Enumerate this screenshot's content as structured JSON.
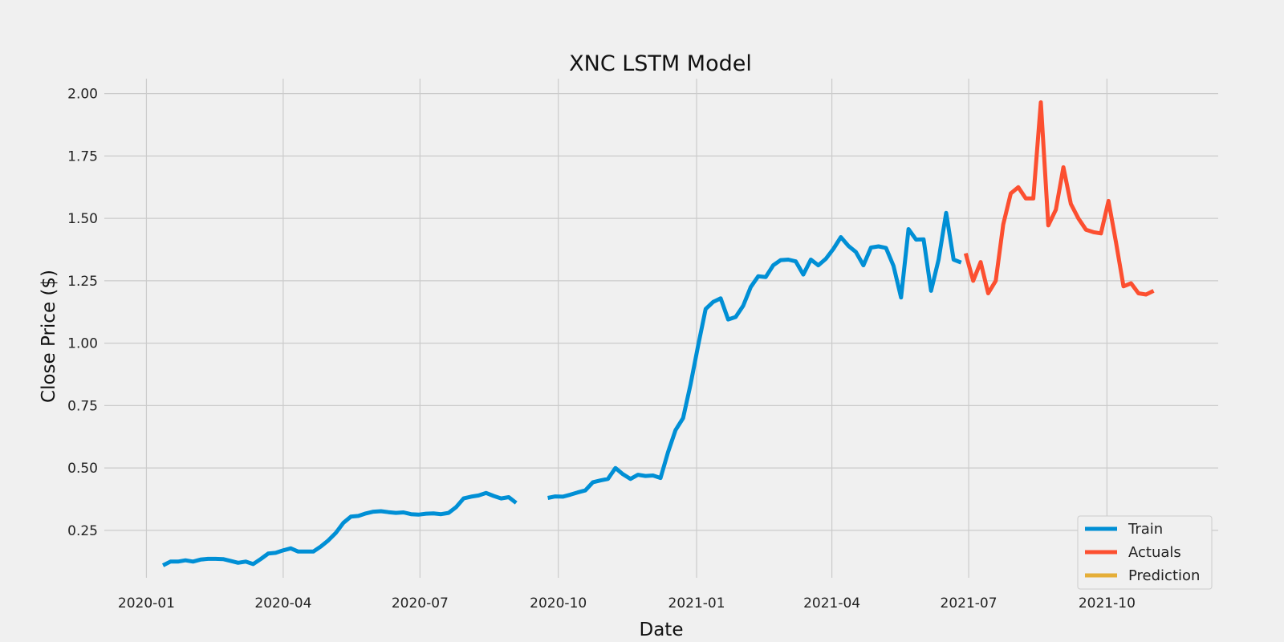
{
  "chart_data": {
    "type": "line",
    "title": "XNC LSTM Model",
    "xlabel": "Date",
    "ylabel": "Close Price ($)",
    "grid": true,
    "legend_position": "bottom-right",
    "x_ticks": [
      "2020-01",
      "2020-04",
      "2020-07",
      "2020-10",
      "2021-01",
      "2021-04",
      "2021-07",
      "2021-10"
    ],
    "y_ticks": [
      "0.25",
      "0.50",
      "0.75",
      "1.00",
      "1.25",
      "1.50",
      "1.75",
      "2.00"
    ],
    "xlim": [
      "2019-12-04",
      "2021-12-14"
    ],
    "ylim": [
      0.06,
      2.06
    ],
    "series": [
      {
        "name": "Train",
        "color": "#008fd5",
        "x": [
          "2020-01-12",
          "2020-01-17",
          "2020-01-22",
          "2020-01-27",
          "2020-02-01",
          "2020-02-06",
          "2020-02-11",
          "2020-02-16",
          "2020-02-21",
          "2020-02-26",
          "2020-03-02",
          "2020-03-07",
          "2020-03-12",
          "2020-03-17",
          "2020-03-22",
          "2020-03-27",
          "2020-04-01",
          "2020-04-06",
          "2020-04-11",
          "2020-04-16",
          "2020-04-21",
          "2020-04-26",
          "2020-05-01",
          "2020-05-06",
          "2020-05-11",
          "2020-05-16",
          "2020-05-21",
          "2020-05-26",
          "2020-05-31",
          "2020-06-05",
          "2020-06-10",
          "2020-06-15",
          "2020-06-20",
          "2020-06-25",
          "2020-06-30",
          "2020-07-05",
          "2020-07-10",
          "2020-07-15",
          "2020-07-20",
          "2020-07-25",
          "2020-07-30",
          "2020-08-04",
          "2020-08-09",
          "2020-08-14",
          "2020-08-19",
          "2020-08-24",
          "2020-08-29",
          "2020-09-03",
          null,
          "2020-09-24",
          "2020-09-29",
          "2020-10-04",
          "2020-10-09",
          "2020-10-14",
          "2020-10-19",
          "2020-10-24",
          "2020-10-29",
          "2020-11-03",
          "2020-11-08",
          "2020-11-13",
          "2020-11-18",
          "2020-11-23",
          "2020-11-28",
          "2020-12-03",
          "2020-12-08",
          "2020-12-13",
          "2020-12-18",
          "2020-12-23",
          "2020-12-28",
          "2021-01-02",
          "2021-01-07",
          "2021-01-12",
          "2021-01-17",
          "2021-01-22",
          "2021-01-27",
          "2021-02-01",
          "2021-02-06",
          "2021-02-11",
          "2021-02-16",
          "2021-02-21",
          "2021-02-26",
          "2021-03-03",
          "2021-03-08",
          "2021-03-13",
          "2021-03-18",
          "2021-03-23",
          "2021-03-28",
          "2021-04-02",
          "2021-04-07",
          "2021-04-12",
          "2021-04-17",
          "2021-04-22",
          "2021-04-27",
          "2021-05-02",
          "2021-05-07",
          "2021-05-12",
          "2021-05-17",
          "2021-05-22",
          "2021-05-27",
          "2021-06-01",
          "2021-06-06",
          "2021-06-11",
          "2021-06-16",
          "2021-06-21",
          "2021-06-26"
        ],
        "values": [
          0.11,
          0.125,
          0.125,
          0.13,
          0.125,
          0.133,
          0.136,
          0.136,
          0.135,
          0.128,
          0.12,
          0.125,
          0.115,
          0.135,
          0.157,
          0.16,
          0.17,
          0.178,
          0.165,
          0.165,
          0.165,
          0.185,
          0.21,
          0.24,
          0.28,
          0.305,
          0.308,
          0.318,
          0.325,
          0.327,
          0.323,
          0.32,
          0.322,
          0.315,
          0.313,
          0.317,
          0.318,
          0.315,
          0.32,
          0.343,
          0.378,
          0.385,
          0.39,
          0.4,
          0.388,
          0.378,
          0.383,
          0.36,
          null,
          0.38,
          0.386,
          0.385,
          0.393,
          0.402,
          0.41,
          0.443,
          0.45,
          0.456,
          0.5,
          0.475,
          0.456,
          0.473,
          0.468,
          0.47,
          0.46,
          0.563,
          0.652,
          0.7,
          0.835,
          0.99,
          1.137,
          1.165,
          1.18,
          1.095,
          1.105,
          1.15,
          1.225,
          1.268,
          1.265,
          1.312,
          1.333,
          1.335,
          1.328,
          1.275,
          1.335,
          1.312,
          1.338,
          1.378,
          1.425,
          1.39,
          1.365,
          1.312,
          1.383,
          1.388,
          1.382,
          1.31,
          1.183,
          1.457,
          1.415,
          1.416,
          1.21,
          1.335,
          1.522,
          1.335,
          1.323
        ]
      },
      {
        "name": "Actuals",
        "color": "#fc4f30",
        "x": [
          "2021-06-29",
          "2021-07-04",
          "2021-07-09",
          "2021-07-14",
          "2021-07-19",
          "2021-07-24",
          "2021-07-29",
          "2021-08-03",
          "2021-08-08",
          "2021-08-13",
          "2021-08-18",
          "2021-08-23",
          "2021-08-28",
          "2021-09-02",
          "2021-09-07",
          "2021-09-12",
          "2021-09-17",
          "2021-09-22",
          "2021-09-27",
          "2021-10-02",
          "2021-10-07",
          "2021-10-12",
          "2021-10-17",
          "2021-10-22",
          "2021-10-27",
          "2021-11-01"
        ],
        "values": [
          1.36,
          1.25,
          1.325,
          1.2,
          1.25,
          1.475,
          1.6,
          1.625,
          1.58,
          1.58,
          1.965,
          1.472,
          1.535,
          1.705,
          1.558,
          1.5,
          1.455,
          1.445,
          1.44,
          1.57,
          1.405,
          1.228,
          1.24,
          1.2,
          1.195,
          1.21
        ]
      },
      {
        "name": "Prediction",
        "color": "#e5ae38",
        "x": [],
        "values": []
      }
    ]
  }
}
